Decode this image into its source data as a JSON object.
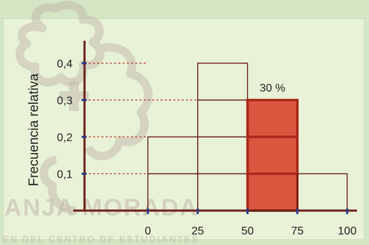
{
  "watermark": {
    "word": "ANJA MORADA",
    "tagline": "EN DEL CENTRO DE ESTUDIANTES"
  },
  "chart_data": {
    "type": "bar",
    "title": "",
    "xlabel": "",
    "ylabel": "Frecuencia relativa",
    "x_ticks": [
      "0",
      "25",
      "50",
      "75",
      "100"
    ],
    "y_ticks": [
      "0,1",
      "0,2",
      "0,3",
      "0,4"
    ],
    "y_tick_values": [
      0.1,
      0.2,
      0.3,
      0.4
    ],
    "xlim": [
      0,
      100
    ],
    "ylim": [
      0,
      0.4
    ],
    "bins": [
      {
        "from": 0,
        "to": 25,
        "value": 0.2
      },
      {
        "from": 25,
        "to": 50,
        "value": 0.4
      },
      {
        "from": 50,
        "to": 75,
        "value": 0.3,
        "highlight": true
      },
      {
        "from": 75,
        "to": 100,
        "value": 0.1
      }
    ],
    "annotations": [
      {
        "text": "30 %",
        "bin": 2
      }
    ],
    "colors": {
      "outline": "#6b1f16",
      "highlight_fill": "#d9573f",
      "highlight_edge": "#a8281a",
      "ref_line": "#c0392b",
      "axis": "#6b1f16",
      "tick_mark": "#2a3a8c"
    }
  }
}
